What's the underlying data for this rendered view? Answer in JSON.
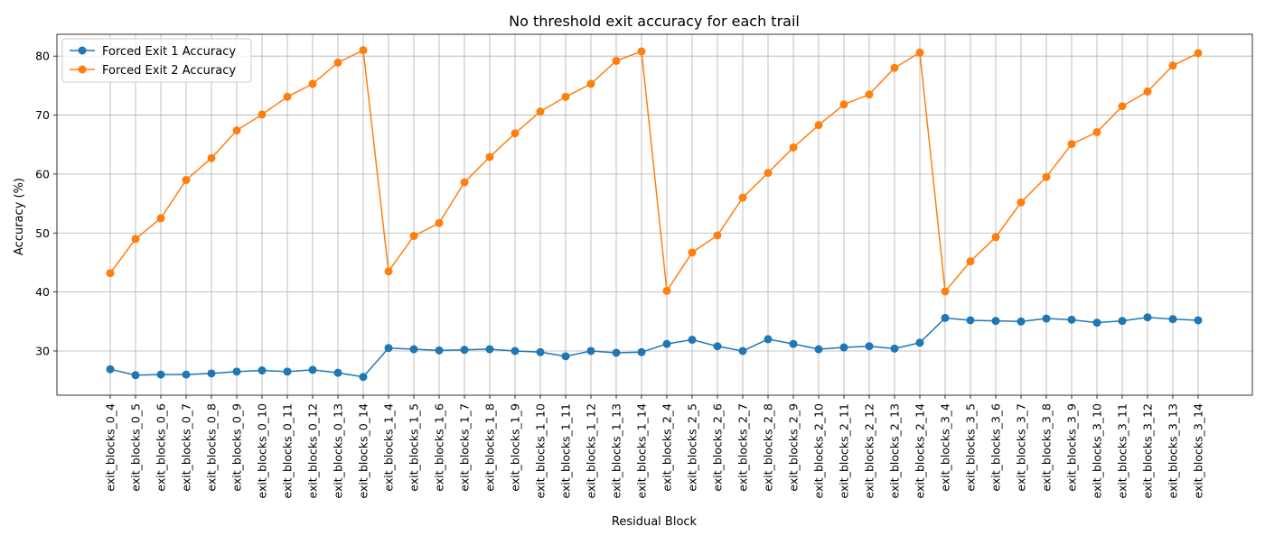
{
  "chart_data": {
    "type": "line",
    "title": "No threshold exit accuracy for each trail",
    "xlabel": "Residual Block",
    "ylabel": "Accuracy (%)",
    "ylim": [
      22.5,
      83.7
    ],
    "yticks": [
      30,
      40,
      50,
      60,
      70,
      80
    ],
    "grid": true,
    "legend_position": "top-left",
    "categories": [
      "exit_blocks_0_4",
      "exit_blocks_0_5",
      "exit_blocks_0_6",
      "exit_blocks_0_7",
      "exit_blocks_0_8",
      "exit_blocks_0_9",
      "exit_blocks_0_10",
      "exit_blocks_0_11",
      "exit_blocks_0_12",
      "exit_blocks_0_13",
      "exit_blocks_0_14",
      "exit_blocks_1_4",
      "exit_blocks_1_5",
      "exit_blocks_1_6",
      "exit_blocks_1_7",
      "exit_blocks_1_8",
      "exit_blocks_1_9",
      "exit_blocks_1_10",
      "exit_blocks_1_11",
      "exit_blocks_1_12",
      "exit_blocks_1_13",
      "exit_blocks_1_14",
      "exit_blocks_2_4",
      "exit_blocks_2_5",
      "exit_blocks_2_6",
      "exit_blocks_2_7",
      "exit_blocks_2_8",
      "exit_blocks_2_9",
      "exit_blocks_2_10",
      "exit_blocks_2_11",
      "exit_blocks_2_12",
      "exit_blocks_2_13",
      "exit_blocks_2_14",
      "exit_blocks_3_4",
      "exit_blocks_3_5",
      "exit_blocks_3_6",
      "exit_blocks_3_7",
      "exit_blocks_3_8",
      "exit_blocks_3_9",
      "exit_blocks_3_10",
      "exit_blocks_3_11",
      "exit_blocks_3_12",
      "exit_blocks_3_13",
      "exit_blocks_3_14"
    ],
    "series": [
      {
        "name": "Forced Exit 1 Accuracy",
        "color": "#1f77b4",
        "values": [
          26.9,
          25.9,
          26.0,
          26.0,
          26.2,
          26.5,
          26.7,
          26.5,
          26.8,
          26.3,
          25.6,
          30.5,
          30.3,
          30.1,
          30.2,
          30.3,
          30.0,
          29.8,
          29.1,
          30.0,
          29.7,
          29.8,
          31.2,
          31.9,
          30.8,
          30.0,
          32.0,
          31.2,
          30.3,
          30.6,
          30.8,
          30.4,
          31.4,
          35.6,
          35.2,
          35.1,
          35.0,
          35.5,
          35.3,
          34.8,
          35.1,
          35.7,
          35.4,
          35.2
        ]
      },
      {
        "name": "Forced Exit 2 Accuracy",
        "color": "#ff7f0e",
        "values": [
          43.2,
          49.0,
          52.5,
          59.0,
          62.7,
          67.4,
          70.1,
          73.1,
          75.3,
          78.9,
          81.0,
          43.5,
          49.5,
          51.7,
          58.6,
          62.9,
          66.9,
          70.6,
          73.1,
          75.3,
          79.2,
          80.8,
          40.2,
          46.7,
          49.6,
          56.0,
          60.2,
          64.5,
          68.3,
          71.8,
          73.5,
          78.0,
          80.6,
          40.1,
          45.2,
          49.3,
          55.2,
          59.5,
          65.1,
          67.1,
          71.5,
          74.0,
          78.4,
          80.5
        ]
      }
    ]
  }
}
